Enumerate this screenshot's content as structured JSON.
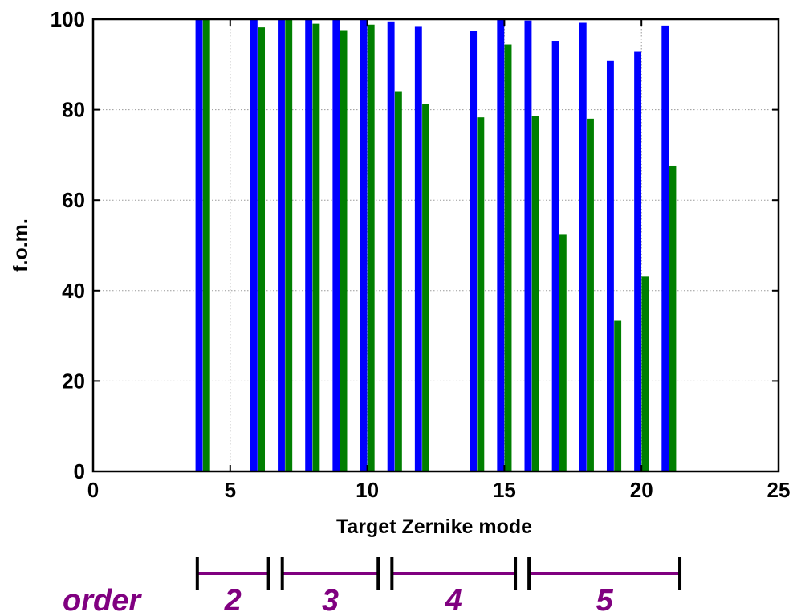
{
  "chart_data": {
    "type": "bar",
    "title": "",
    "xlabel": "Target Zernike mode",
    "ylabel": "f.o.m.",
    "xlim": [
      0,
      25
    ],
    "ylim": [
      0,
      100
    ],
    "xticks": [
      "0",
      "5",
      "10",
      "15",
      "20",
      "25"
    ],
    "yticks": [
      "0",
      "20",
      "40",
      "60",
      "80",
      "100"
    ],
    "grid": true,
    "legend": "none",
    "categories": [
      4,
      6,
      7,
      8,
      9,
      10,
      11,
      12,
      14,
      15,
      16,
      17,
      18,
      19,
      20,
      21
    ],
    "series": [
      {
        "color": "#0000ff",
        "values": [
          100,
          100,
          100,
          100,
          100,
          100,
          99.5,
          98.5,
          97.5,
          100,
          99.7,
          95.2,
          99.2,
          90.8,
          92.8,
          98.6
        ]
      },
      {
        "color": "#007f00",
        "values": [
          100,
          98.2,
          100,
          99,
          97.6,
          98.8,
          84.1,
          81.3,
          78.3,
          94.4,
          78.6,
          52.5,
          78,
          33.3,
          43.1,
          67.5
        ]
      }
    ],
    "order_annotation": {
      "label": "order",
      "color": "#800080",
      "groups": [
        {
          "label": "2",
          "from_mode": 3.8,
          "to_mode": 6.4
        },
        {
          "label": "3",
          "from_mode": 6.9,
          "to_mode": 10.4
        },
        {
          "label": "4",
          "from_mode": 10.9,
          "to_mode": 15.4
        },
        {
          "label": "5",
          "from_mode": 15.9,
          "to_mode": 21.4
        }
      ]
    }
  }
}
